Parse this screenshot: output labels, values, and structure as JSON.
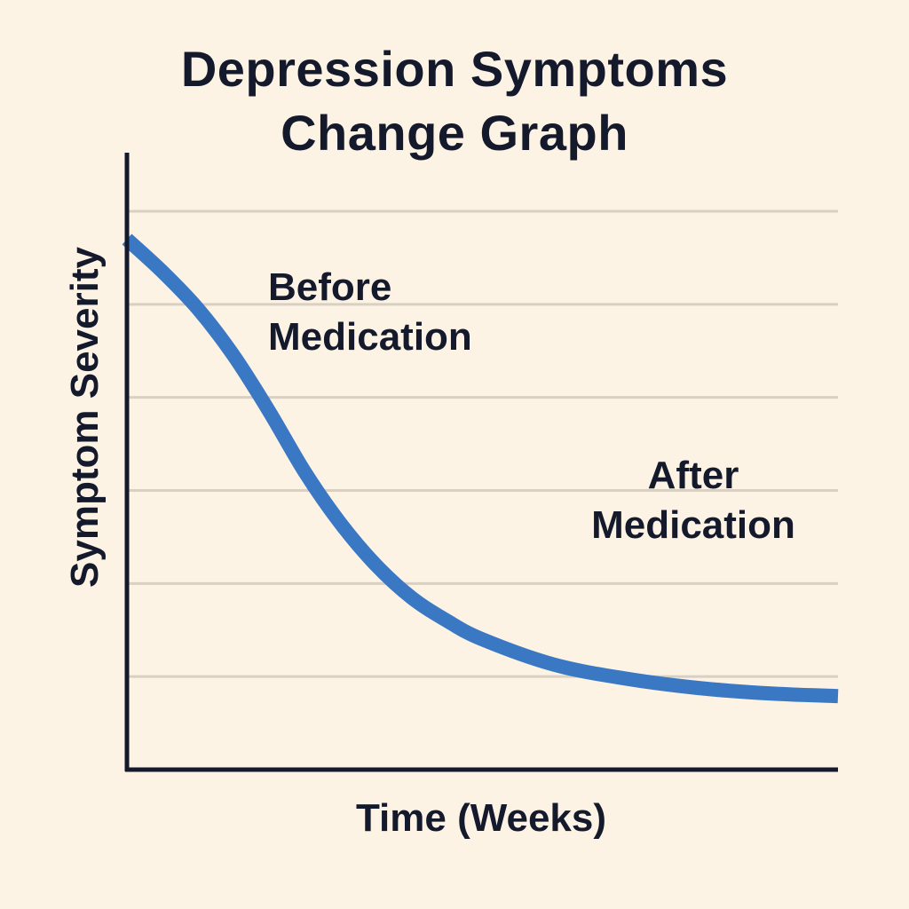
{
  "chart_data": {
    "type": "line",
    "title_lines": [
      "Depression Symptoms",
      "Change Graph"
    ],
    "xlabel": "Time (Weeks)",
    "ylabel": "Symptom Severity",
    "xlim": [
      0,
      10
    ],
    "ylim": [
      0,
      6
    ],
    "grid": true,
    "grid_levels": [
      1,
      2,
      3,
      4,
      5,
      6
    ],
    "x_tick_labels": [],
    "y_tick_labels": [],
    "annotations": [
      {
        "text_lines": [
          "Before",
          "Medication"
        ]
      },
      {
        "text_lines": [
          "After",
          "Medication"
        ]
      }
    ],
    "series": [
      {
        "color": "#3b78c4",
        "x": [
          0,
          0.5,
          1,
          1.5,
          2,
          2.5,
          3,
          3.5,
          4,
          4.5,
          5,
          6,
          7,
          8,
          9,
          10
        ],
        "y": [
          5.7,
          5.35,
          4.95,
          4.45,
          3.85,
          3.2,
          2.65,
          2.2,
          1.85,
          1.6,
          1.4,
          1.13,
          0.98,
          0.88,
          0.82,
          0.79
        ]
      }
    ],
    "colors": {
      "background": "#fcf3e5",
      "axis": "#141a2b",
      "grid": "#d9d0c1",
      "line": "#3b78c4",
      "text": "#141a2b"
    }
  }
}
